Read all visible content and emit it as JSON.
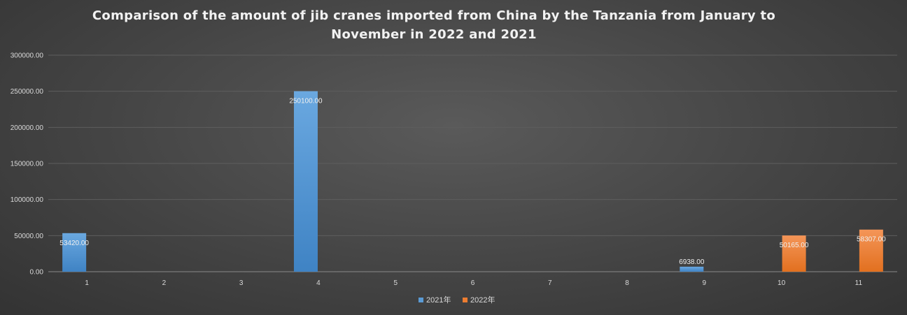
{
  "chart_data": {
    "type": "bar",
    "title_lines": [
      "Comparison of the amount of jib cranes imported from China by the Tanzania from January to",
      "November in 2022 and 2021"
    ],
    "categories": [
      "1",
      "2",
      "3",
      "4",
      "5",
      "6",
      "7",
      "8",
      "9",
      "10",
      "11"
    ],
    "series": [
      {
        "name": "2021年",
        "color": "#5b9bd5",
        "values": [
          53420,
          null,
          null,
          250100,
          null,
          null,
          null,
          null,
          6938,
          null,
          null
        ],
        "labels": [
          "53420.00",
          "",
          "",
          "250100.00",
          "",
          "",
          "",
          "",
          "6938.00",
          "",
          ""
        ]
      },
      {
        "name": "2022年",
        "color": "#ed7d31",
        "values": [
          null,
          null,
          null,
          null,
          null,
          null,
          null,
          null,
          null,
          50165,
          58307
        ],
        "labels": [
          "",
          "",
          "",
          "",
          "",
          "",
          "",
          "",
          "",
          "50165.00",
          "58307.00"
        ]
      }
    ],
    "ylim": [
      0,
      300000
    ],
    "yticks": [
      0,
      50000,
      100000,
      150000,
      200000,
      250000,
      300000
    ],
    "ytick_labels": [
      "0.00",
      "50000.00",
      "100000.00",
      "150000.00",
      "200000.00",
      "250000.00",
      "300000.00"
    ],
    "grid": true,
    "legend_position": "bottom"
  }
}
